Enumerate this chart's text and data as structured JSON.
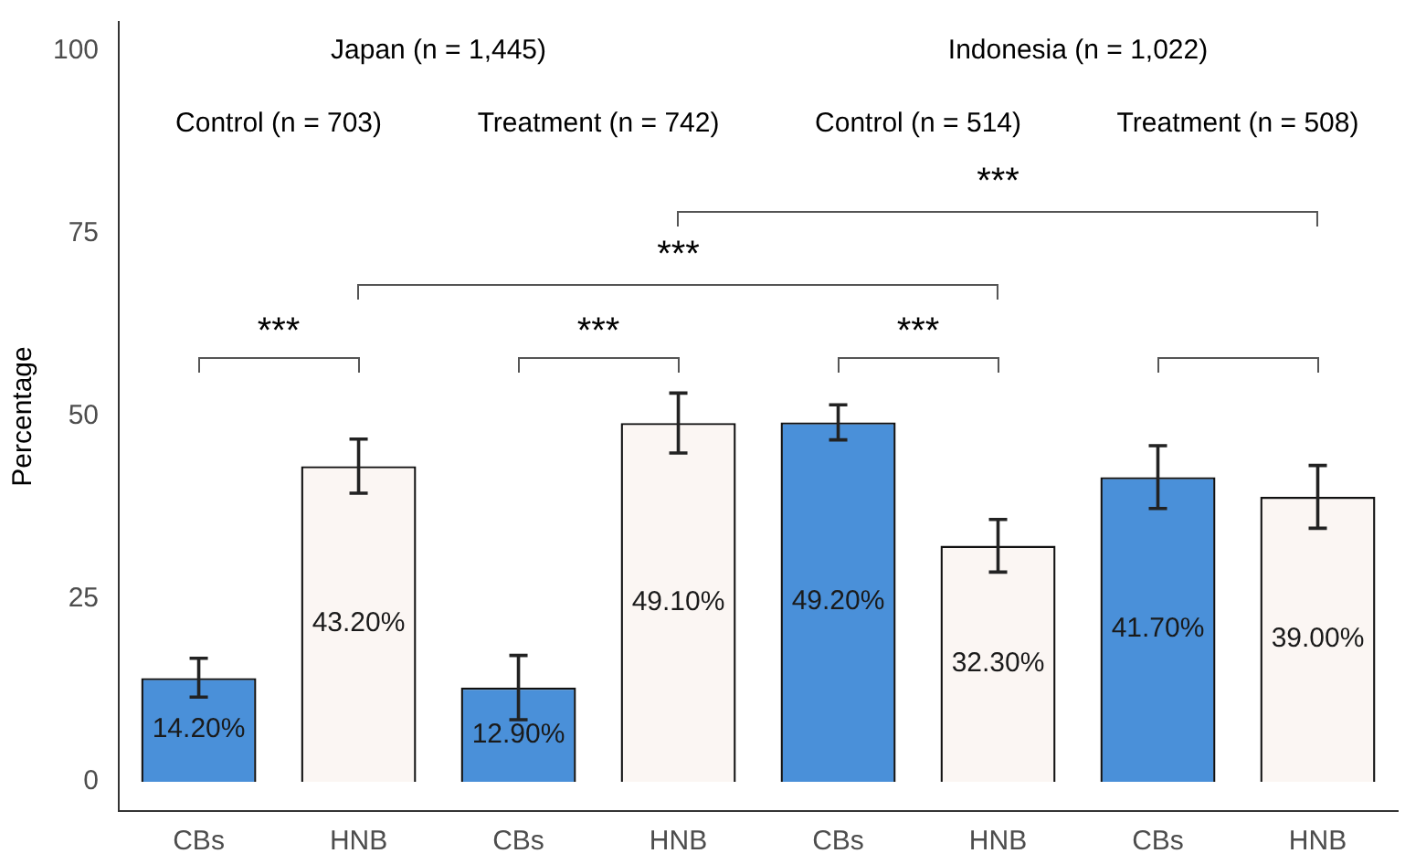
{
  "chart_data": {
    "type": "bar",
    "ylabel": "Percentage",
    "categories": [
      "CBs",
      "HNB",
      "CBs",
      "HNB",
      "CBs",
      "HNB",
      "CBs",
      "HNB"
    ],
    "values": [
      14.2,
      43.2,
      12.9,
      49.1,
      49.2,
      32.3,
      41.7,
      39.0
    ],
    "colors": [
      "#4a90d9",
      "#fbf6f3",
      "#4a90d9",
      "#fbf6f3",
      "#4a90d9",
      "#fbf6f3",
      "#4a90d9",
      "#fbf6f3"
    ],
    "errors": [
      [
        11.6,
        16.9
      ],
      [
        39.5,
        46.9
      ],
      [
        8.5,
        17.3
      ],
      [
        45.0,
        53.2
      ],
      [
        46.8,
        51.6
      ],
      [
        28.7,
        35.9
      ],
      [
        37.4,
        46.0
      ],
      [
        34.7,
        43.3
      ]
    ],
    "value_labels": [
      "14.20%",
      "43.20%",
      "12.90%",
      "49.10%",
      "49.20%",
      "32.30%",
      "41.70%",
      "39.00%"
    ],
    "ylim": [
      -4,
      104
    ],
    "yticks": [
      0,
      25,
      50,
      75,
      100
    ],
    "grid": false,
    "legend": false,
    "annotations": [
      "Japan (n = 1,445)",
      "Indonesia (n = 1,022)",
      "Control (n = 703)",
      "Treatment (n = 742)",
      "Control (n = 514)",
      "Treatment (n = 508)",
      "***",
      "***",
      "***",
      "***",
      "***"
    ]
  }
}
